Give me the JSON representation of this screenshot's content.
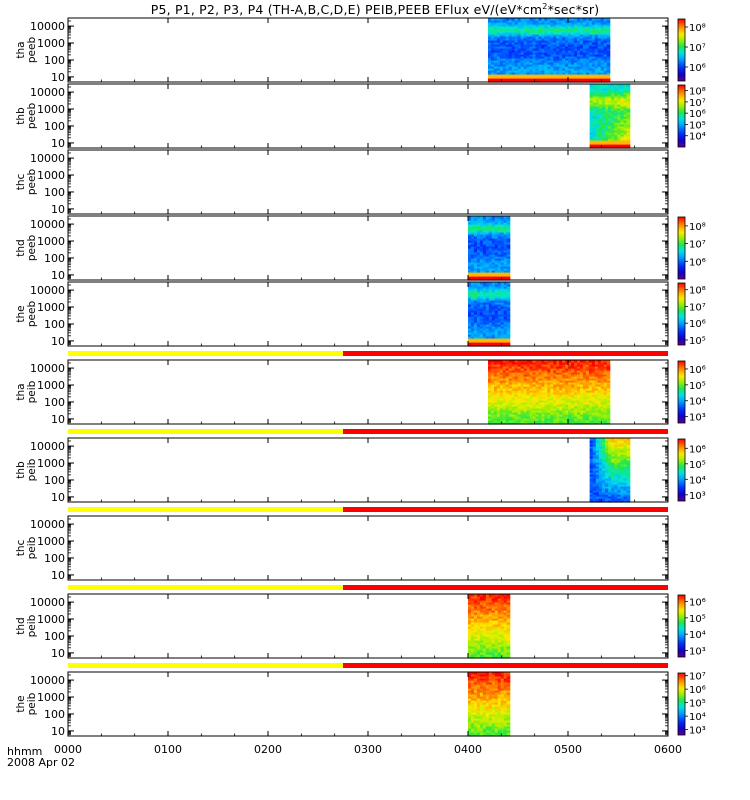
{
  "chart_data": {
    "type": "heatmap",
    "title": "P5, P1, P2, P3, P4 (TH-A,B,C,D,E) PEIB,PEEB EFlux eV/(eV*cm^2*sec*sr)",
    "title_parts": {
      "pre": "P5, P1, P2, P3, P4 (TH-A,B,C,D,E) PEIB,PEEB EFlux eV/(eV*cm",
      "sup": "2",
      "post": "*sec*sr)"
    },
    "x_axis": {
      "label": "hhmm",
      "date_label": "2008 Apr 02",
      "range": [
        "0000",
        "0600"
      ],
      "ticks": [
        "0000",
        "0100",
        "0200",
        "0300",
        "0400",
        "0500",
        "0600"
      ]
    },
    "y_axis": {
      "scale": "log",
      "range": [
        5,
        30000
      ],
      "ticks": [
        "10",
        "100",
        "1000",
        "10000"
      ]
    },
    "mode_bar_colors": {
      "slow_survey": "#ffff00",
      "fast_survey": "#ff0000"
    },
    "panels": [
      {
        "probe": "thα",
        "label_line1": "tha",
        "label_line2": "peeb",
        "species": "electron",
        "data_intervals": [
          [
            "0412",
            "0485"
          ]
        ],
        "colorbar": {
          "ticks": [
            "10^8",
            "10^7",
            "10^6"
          ],
          "range_log": [
            5.3,
            8.4
          ]
        }
      },
      {
        "probe": "thb",
        "label_line1": "thb",
        "label_line2": "peeb",
        "species": "electron",
        "data_intervals": [
          [
            "0513",
            "0537"
          ]
        ],
        "colorbar": {
          "ticks": [
            "10^8",
            "10^7",
            "10^6",
            "10^5",
            "10^4"
          ],
          "range_log": [
            3.0,
            8.5
          ]
        }
      },
      {
        "probe": "thc",
        "label_line1": "thc",
        "label_line2": "peeb",
        "species": "electron",
        "data_intervals": [],
        "colorbar": null
      },
      {
        "probe": "thd",
        "label_line1": "thd",
        "label_line2": "peeb",
        "species": "electron",
        "data_intervals": [
          [
            "0360",
            "0385"
          ]
        ],
        "colorbar": {
          "ticks": [
            "10^8",
            "10^7",
            "10^6"
          ],
          "range_log": [
            5.0,
            8.5
          ]
        }
      },
      {
        "probe": "the",
        "label_line1": "the",
        "label_line2": "peeb",
        "species": "electron",
        "data_intervals": [
          [
            "0360",
            "0385"
          ]
        ],
        "colorbar": {
          "ticks": [
            "10^8",
            "10^7",
            "10^6",
            "10^5"
          ],
          "range_log": [
            4.7,
            8.4
          ]
        }
      },
      {
        "probe": "thα",
        "label_line1": "tha",
        "label_line2": "peib",
        "species": "ion",
        "data_intervals": [
          [
            "0412",
            "0485"
          ]
        ],
        "mode_bar": {
          "slow_until": "0245",
          "fast_from": "0245"
        },
        "colorbar": {
          "ticks": [
            "10^6",
            "10^5",
            "10^4",
            "10^3"
          ],
          "range_log": [
            2.6,
            6.5
          ]
        }
      },
      {
        "probe": "thb",
        "label_line1": "thb",
        "label_line2": "peib",
        "species": "ion",
        "data_intervals": [
          [
            "0513",
            "0537"
          ]
        ],
        "mode_bar": {
          "slow_until": "0245",
          "fast_from": "0245"
        },
        "colorbar": {
          "ticks": [
            "10^6",
            "10^5",
            "10^4",
            "10^3"
          ],
          "range_log": [
            2.6,
            6.6
          ]
        }
      },
      {
        "probe": "thc",
        "label_line1": "thc",
        "label_line2": "peib",
        "species": "ion",
        "data_intervals": [],
        "mode_bar": {
          "slow_until": "0245",
          "fast_from": "0245"
        },
        "colorbar": null
      },
      {
        "probe": "thd",
        "label_line1": "thd",
        "label_line2": "peib",
        "species": "ion",
        "data_intervals": [
          [
            "0360",
            "0385"
          ]
        ],
        "mode_bar": {
          "slow_until": "0245",
          "fast_from": "0245"
        },
        "colorbar": {
          "ticks": [
            "10^6",
            "10^5",
            "10^4",
            "10^3"
          ],
          "range_log": [
            2.6,
            6.4
          ]
        }
      },
      {
        "probe": "the",
        "label_line1": "the",
        "label_line2": "peib",
        "species": "ion",
        "data_intervals": [
          [
            "0360",
            "0385"
          ]
        ],
        "mode_bar": {
          "slow_until": "0245",
          "fast_from": "0245"
        },
        "colorbar": {
          "ticks": [
            "10^7",
            "10^6",
            "10^5",
            "10^4",
            "10^3"
          ],
          "range_log": [
            2.6,
            7.2
          ]
        }
      }
    ]
  }
}
